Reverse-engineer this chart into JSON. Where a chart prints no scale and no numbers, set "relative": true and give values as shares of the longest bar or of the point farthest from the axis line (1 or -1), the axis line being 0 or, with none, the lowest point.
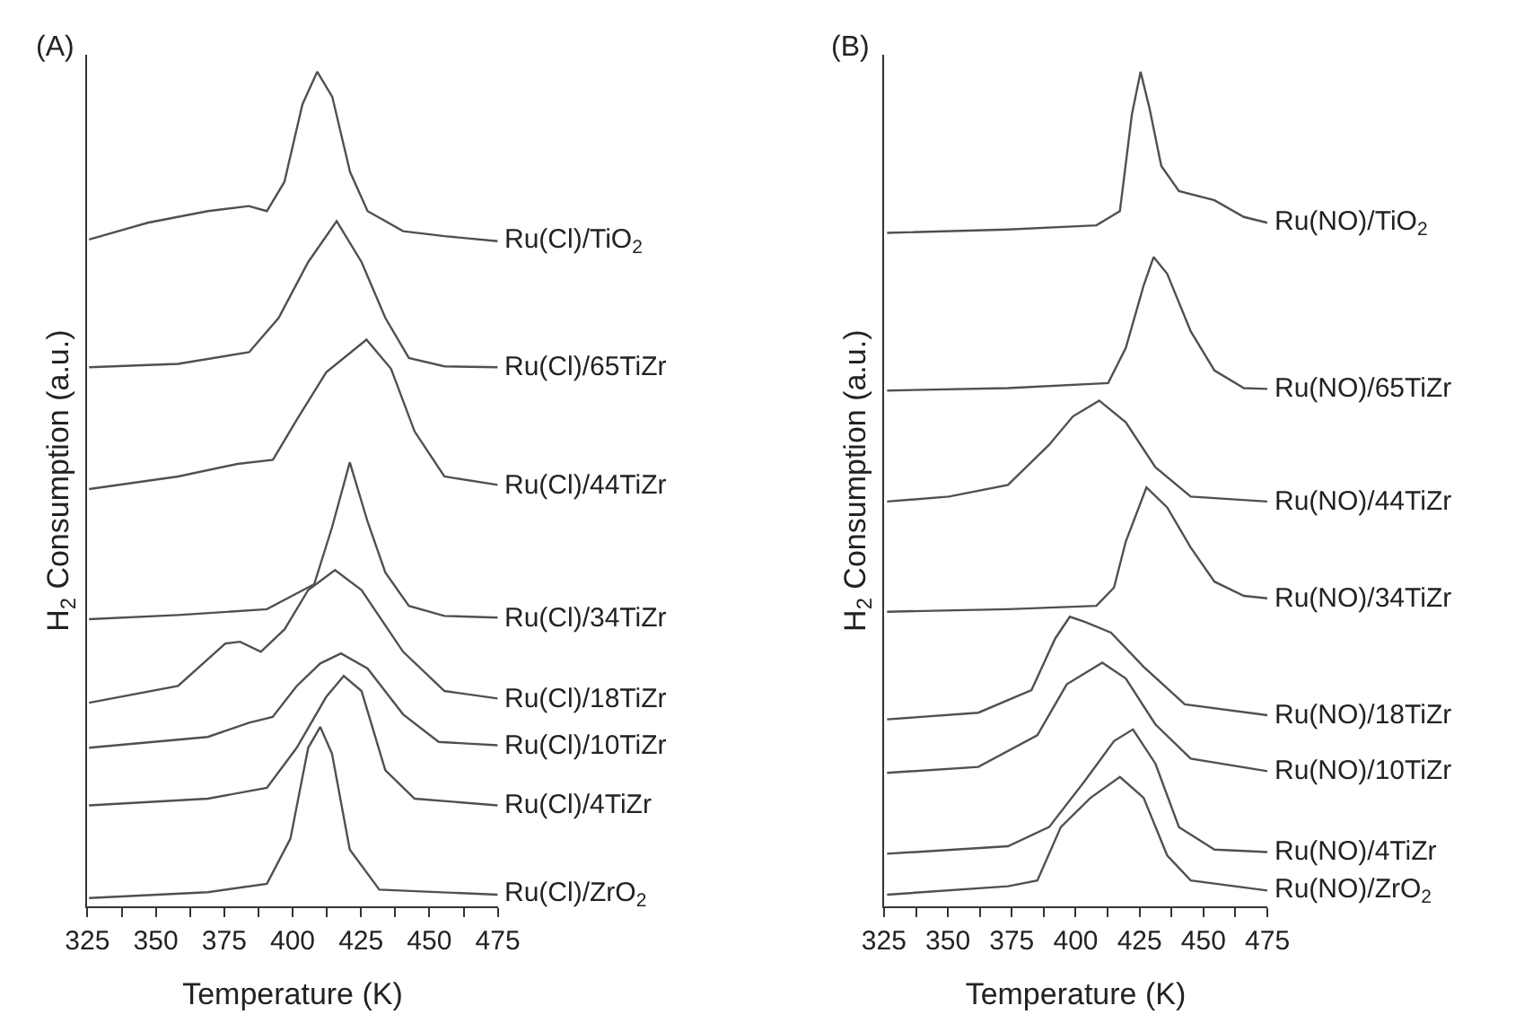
{
  "chart_data": [
    {
      "type": "line",
      "title": "(A)",
      "xlabel": "Temperature (K)",
      "ylabel": "H$_{2}$ Consumption (a.u.)",
      "relative": true,
      "xlim": [
        325,
        475
      ],
      "xticks": [
        325,
        {
          "value": 337.5,
          "label": null
        },
        350,
        {
          "value": 362.5,
          "label": null
        },
        375,
        {
          "value": 387.5,
          "label": null
        },
        400,
        {
          "value": 412.5,
          "label": null
        },
        425,
        {
          "value": 437.5,
          "label": null
        },
        450,
        {
          "value": 462.5,
          "label": null
        },
        475
      ],
      "legend": false,
      "marker": "none",
      "line_style": "solid",
      "series": [
        {
          "name": "Ru(Cl)/TiO$_{2}$",
          "color": "#505050",
          "x": [
            325.6,
            347,
            369,
            384,
            390.6,
            397,
            403.6,
            409,
            414.5,
            421,
            427.4,
            440.4,
            455.5,
            475
          ],
          "values": [
            0.799,
            0.819,
            0.833,
            0.839,
            0.833,
            0.868,
            0.961,
            1.0,
            0.97,
            0.88,
            0.833,
            0.809,
            0.803,
            0.797
          ]
        },
        {
          "name": "Ru(Cl)/65TiZr",
          "color": "#505050",
          "x": [
            325.6,
            358.1,
            384.1,
            394.9,
            405.7,
            416.1,
            425.2,
            433.9,
            442.5,
            455.5,
            475
          ],
          "values": [
            0.646,
            0.65,
            0.664,
            0.705,
            0.772,
            0.821,
            0.772,
            0.705,
            0.657,
            0.647,
            0.646
          ]
        },
        {
          "name": "Ru(Cl)/44TiZr",
          "color": "#505050",
          "x": [
            325.6,
            358.1,
            379.8,
            392.8,
            401.5,
            412.3,
            427,
            436,
            444.6,
            455.5,
            475
          ],
          "values": [
            0.5,
            0.515,
            0.53,
            0.535,
            0.583,
            0.64,
            0.679,
            0.644,
            0.569,
            0.515,
            0.505
          ]
        },
        {
          "name": "Ru(Cl)/34TiZr",
          "color": "#505050",
          "x": [
            325.6,
            358.1,
            390.6,
            407.9,
            414.4,
            420.9,
            427.4,
            433.9,
            442.5,
            455.5,
            475
          ],
          "values": [
            0.344,
            0.349,
            0.356,
            0.386,
            0.454,
            0.532,
            0.461,
            0.4,
            0.36,
            0.348,
            0.346
          ]
        },
        {
          "name": "Ru(Cl)/18TiZr",
          "color": "#505050",
          "x": [
            325.6,
            358.1,
            375.4,
            380.8,
            388.4,
            397.1,
            405.7,
            415.5,
            425.2,
            440.4,
            455.5,
            475
          ],
          "values": [
            0.244,
            0.264,
            0.315,
            0.317,
            0.305,
            0.332,
            0.379,
            0.403,
            0.379,
            0.305,
            0.258,
            0.249
          ]
        },
        {
          "name": "Ru(Cl)/10TiZr",
          "color": "#505050",
          "x": [
            325.6,
            369,
            384.1,
            392.7,
            401.5,
            410.1,
            417.7,
            427.4,
            440.4,
            453.4,
            475
          ],
          "values": [
            0.19,
            0.203,
            0.22,
            0.227,
            0.264,
            0.291,
            0.303,
            0.285,
            0.23,
            0.197,
            0.193
          ]
        },
        {
          "name": "Ru(Cl)/4TiZr",
          "color": "#505050",
          "x": [
            325.6,
            369,
            390.6,
            401.5,
            412.3,
            418.7,
            425.2,
            433.9,
            444.6,
            475
          ],
          "values": [
            0.121,
            0.129,
            0.142,
            0.19,
            0.251,
            0.276,
            0.258,
            0.163,
            0.129,
            0.121
          ]
        },
        {
          "name": "Ru(Cl)/ZrO$_{2}$",
          "color": "#505050",
          "x": [
            325.6,
            369,
            390.6,
            399.2,
            405.7,
            410.1,
            414.4,
            420.9,
            431.7,
            475
          ],
          "values": [
            0.01,
            0.017,
            0.027,
            0.081,
            0.19,
            0.215,
            0.183,
            0.068,
            0.02,
            0.014
          ]
        }
      ]
    },
    {
      "type": "line",
      "title": "(B)",
      "xlabel": "Temperature (K)",
      "ylabel": "H$_{2}$ Consumption (a.u.)",
      "relative": true,
      "xlim": [
        325,
        475
      ],
      "xticks": [
        325,
        {
          "value": 337.5,
          "label": null
        },
        350,
        {
          "value": 362.5,
          "label": null
        },
        375,
        {
          "value": 387.5,
          "label": null
        },
        400,
        {
          "value": 412.5,
          "label": null
        },
        425,
        {
          "value": 437.5,
          "label": null
        },
        450,
        {
          "value": 462.5,
          "label": null
        },
        475
      ],
      "legend": false,
      "marker": "none",
      "line_style": "solid",
      "series": [
        {
          "name": "Ru(NO)/TiO$_{2}$",
          "color": "#505050",
          "x": [
            326.2,
            373.5,
            408.1,
            417.3,
            422,
            425.4,
            428.9,
            433.5,
            440.4,
            454.3,
            465.8,
            475
          ],
          "values": [
            0.807,
            0.811,
            0.816,
            0.833,
            0.949,
            1.0,
            0.956,
            0.887,
            0.857,
            0.846,
            0.826,
            0.819
          ]
        },
        {
          "name": "Ru(NO)/65TiZr",
          "color": "#505050",
          "x": [
            326.2,
            373.5,
            412.7,
            419.6,
            426.6,
            430.5,
            435.8,
            445,
            454.3,
            465.8,
            475
          ],
          "values": [
            0.618,
            0.621,
            0.627,
            0.669,
            0.744,
            0.778,
            0.758,
            0.689,
            0.642,
            0.621,
            0.62
          ]
        },
        {
          "name": "Ru(NO)/44TiZr",
          "color": "#505050",
          "x": [
            326.2,
            350.4,
            373.5,
            389.6,
            398.9,
            409.2,
            419.6,
            431.2,
            445,
            475
          ],
          "values": [
            0.485,
            0.491,
            0.505,
            0.553,
            0.587,
            0.606,
            0.58,
            0.526,
            0.491,
            0.485
          ]
        },
        {
          "name": "Ru(NO)/34TiZr",
          "color": "#505050",
          "x": [
            326.2,
            373.5,
            408.1,
            415,
            419.6,
            427.7,
            435.8,
            445,
            454.3,
            465.8,
            475
          ],
          "values": [
            0.353,
            0.356,
            0.36,
            0.382,
            0.437,
            0.502,
            0.478,
            0.43,
            0.389,
            0.372,
            0.369
          ]
        },
        {
          "name": "Ru(NO)/18TiZr",
          "color": "#505050",
          "x": [
            326.2,
            361.9,
            382.7,
            392,
            397.7,
            403.5,
            413.8,
            426.6,
            442.7,
            475
          ],
          "values": [
            0.224,
            0.232,
            0.259,
            0.321,
            0.347,
            0.341,
            0.328,
            0.287,
            0.242,
            0.229
          ]
        },
        {
          "name": "Ru(NO)/10TiZr",
          "color": "#505050",
          "x": [
            326.2,
            361.9,
            385,
            396.5,
            410.4,
            419.6,
            431.2,
            445,
            475
          ],
          "values": [
            0.16,
            0.167,
            0.205,
            0.266,
            0.292,
            0.273,
            0.218,
            0.177,
            0.162
          ]
        },
        {
          "name": "Ru(NO)/4TiZr",
          "color": "#505050",
          "x": [
            326.2,
            373.5,
            389.6,
            403.5,
            415,
            422.4,
            431.2,
            440.4,
            454.3,
            475
          ],
          "values": [
            0.063,
            0.072,
            0.095,
            0.15,
            0.198,
            0.212,
            0.171,
            0.095,
            0.068,
            0.065
          ]
        },
        {
          "name": "Ru(NO)/ZrO$_{2}$",
          "color": "#505050",
          "x": [
            326.2,
            373.5,
            385,
            394.2,
            405.8,
            417.3,
            426.6,
            435.8,
            445,
            475
          ],
          "values": [
            0.014,
            0.024,
            0.031,
            0.095,
            0.13,
            0.155,
            0.13,
            0.061,
            0.031,
            0.019
          ]
        }
      ]
    }
  ]
}
